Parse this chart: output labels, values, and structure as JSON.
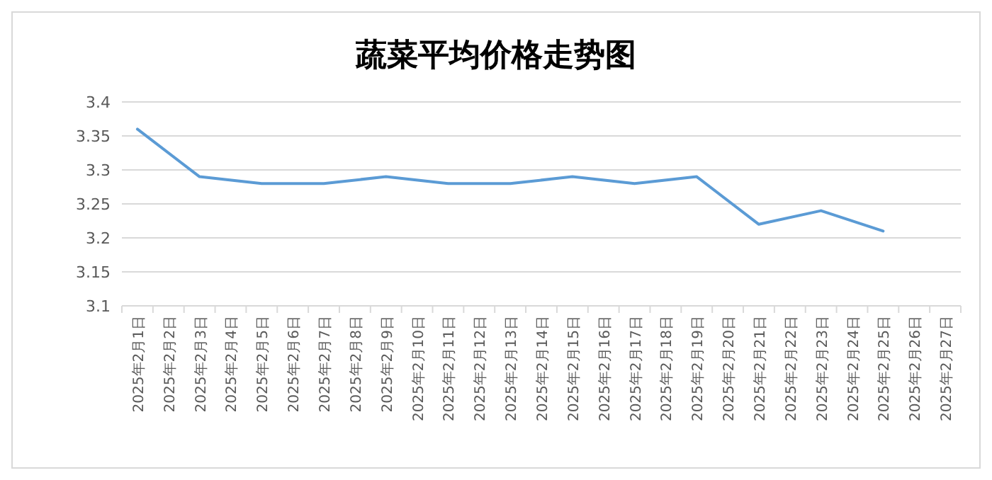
{
  "chart_data": {
    "type": "line",
    "title": "蔬菜平均价格走势图",
    "categories": [
      "2025年2月1日",
      "2025年2月2日",
      "2025年2月3日",
      "2025年2月4日",
      "2025年2月5日",
      "2025年2月6日",
      "2025年2月7日",
      "2025年2月8日",
      "2025年2月9日",
      "2025年2月10日",
      "2025年2月11日",
      "2025年2月12日",
      "2025年2月13日",
      "2025年2月14日",
      "2025年2月15日",
      "2025年2月16日",
      "2025年2月17日",
      "2025年2月18日",
      "2025年2月19日",
      "2025年2月20日",
      "2025年2月21日",
      "2025年2月22日",
      "2025年2月23日",
      "2025年2月24日",
      "2025年2月25日",
      "2025年2月26日",
      "2025年2月27日"
    ],
    "series": [
      {
        "color": "#5b9bd5",
        "x": [
          "2025年2月1日",
          "2025年2月3日",
          "2025年2月5日",
          "2025年2月7日",
          "2025年2月9日",
          "2025年2月11日",
          "2025年2月13日",
          "2025年2月15日",
          "2025年2月17日",
          "2025年2月19日",
          "2025年2月21日",
          "2025年2月23日",
          "2025年2月25日"
        ],
        "values": [
          3.36,
          3.29,
          3.28,
          3.28,
          3.29,
          3.28,
          3.28,
          3.29,
          3.28,
          3.29,
          3.22,
          3.24,
          3.21
        ]
      }
    ],
    "ylim": [
      3.1,
      3.4
    ],
    "yticks": [
      3.1,
      3.15,
      3.2,
      3.25,
      3.3,
      3.35,
      3.4
    ],
    "grid": "y",
    "marker": "none",
    "line_style": "solid"
  }
}
